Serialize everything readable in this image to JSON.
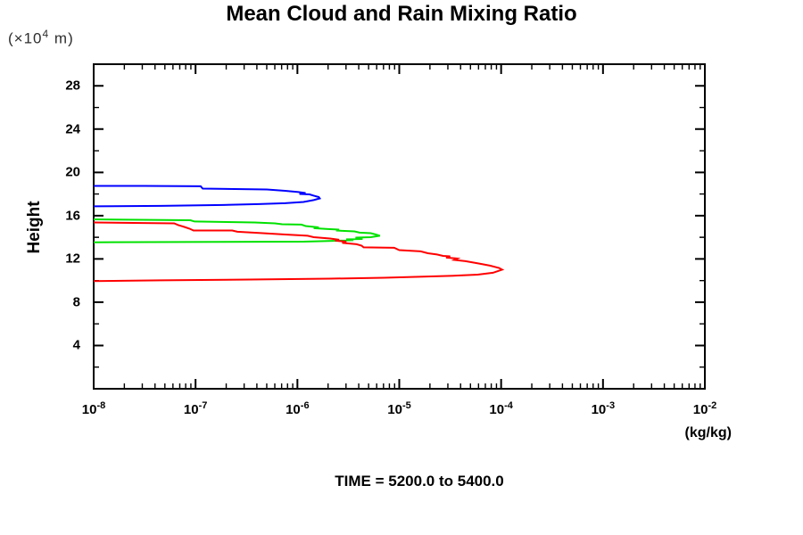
{
  "caption": "TIME = 5200.0 to 5400.0",
  "chart_data": {
    "type": "line",
    "title": "Mean Cloud and Rain Mixing Ratio",
    "legend": "none",
    "grid": false,
    "frame_color": "#000000",
    "background_color": "#ffffff",
    "x_axis": {
      "scale": "log",
      "unit_label": "(kg/kg)",
      "tick_base": "10",
      "min_exponent": -8,
      "max_exponent": -2,
      "major_tick_exponents": [
        -8,
        -7,
        -6,
        -5,
        -4,
        -3,
        -2
      ],
      "minor_tick_mantissas": [
        2,
        3,
        4,
        5,
        6,
        7,
        8,
        9
      ]
    },
    "y_axis": {
      "label": "Height",
      "unit_prefix": "(×10",
      "unit_exponent": "4",
      "unit_suffix": " m)",
      "min": 0,
      "max": 30,
      "major_ticks": [
        4,
        8,
        12,
        16,
        20,
        24,
        28
      ],
      "minor_tick_step": 2
    },
    "series": [
      {
        "name": "cloud-mixing-ratio-blue",
        "color": "#0000ff",
        "points": [
          [
            -8.0,
            18.75
          ],
          [
            -7.5,
            18.75
          ],
          [
            -6.95,
            18.72
          ],
          [
            -6.93,
            18.5
          ],
          [
            -6.3,
            18.42
          ],
          [
            -6.12,
            18.3
          ],
          [
            -5.99,
            18.18
          ],
          [
            -5.92,
            18.09
          ],
          [
            -5.98,
            18.01
          ],
          [
            -5.88,
            17.97
          ],
          [
            -5.84,
            17.85
          ],
          [
            -5.79,
            17.72
          ],
          [
            -5.78,
            17.6
          ],
          [
            -5.84,
            17.44
          ],
          [
            -5.94,
            17.27
          ],
          [
            -6.12,
            17.15
          ],
          [
            -6.38,
            17.07
          ],
          [
            -6.73,
            16.99
          ],
          [
            -7.34,
            16.9
          ],
          [
            -8.0,
            16.86
          ]
        ]
      },
      {
        "name": "cloud-mixing-ratio-green",
        "color": "#00e100",
        "points": [
          [
            -8.0,
            15.66
          ],
          [
            -7.05,
            15.58
          ],
          [
            -7.01,
            15.46
          ],
          [
            -6.42,
            15.37
          ],
          [
            -6.22,
            15.29
          ],
          [
            -6.15,
            15.21
          ],
          [
            -5.96,
            15.17
          ],
          [
            -5.92,
            15.04
          ],
          [
            -5.79,
            14.92
          ],
          [
            -5.84,
            14.84
          ],
          [
            -5.7,
            14.76
          ],
          [
            -5.59,
            14.71
          ],
          [
            -5.62,
            14.63
          ],
          [
            -5.44,
            14.55
          ],
          [
            -5.39,
            14.43
          ],
          [
            -5.28,
            14.38
          ],
          [
            -5.23,
            14.26
          ],
          [
            -5.19,
            14.14
          ],
          [
            -5.28,
            14.01
          ],
          [
            -5.43,
            13.97
          ],
          [
            -5.36,
            13.85
          ],
          [
            -5.52,
            13.81
          ],
          [
            -5.45,
            13.73
          ],
          [
            -5.77,
            13.64
          ],
          [
            -5.94,
            13.6
          ],
          [
            -8.0,
            13.54
          ]
        ]
      },
      {
        "name": "rain-mixing-ratio-red",
        "color": "#ff0000",
        "points": [
          [
            -8.0,
            15.37
          ],
          [
            -7.21,
            15.29
          ],
          [
            -7.17,
            15.13
          ],
          [
            -7.11,
            14.96
          ],
          [
            -7.06,
            14.8
          ],
          [
            -7.02,
            14.63
          ],
          [
            -6.64,
            14.63
          ],
          [
            -6.59,
            14.51
          ],
          [
            -6.34,
            14.38
          ],
          [
            -6.12,
            14.26
          ],
          [
            -5.9,
            14.14
          ],
          [
            -5.84,
            14.01
          ],
          [
            -5.68,
            13.89
          ],
          [
            -5.59,
            13.77
          ],
          [
            -5.63,
            13.69
          ],
          [
            -5.52,
            13.6
          ],
          [
            -5.56,
            13.48
          ],
          [
            -5.42,
            13.36
          ],
          [
            -5.37,
            13.23
          ],
          [
            -5.35,
            13.07
          ],
          [
            -5.05,
            13.03
          ],
          [
            -5.0,
            12.82
          ],
          [
            -4.79,
            12.7
          ],
          [
            -4.72,
            12.53
          ],
          [
            -4.63,
            12.41
          ],
          [
            -4.57,
            12.28
          ],
          [
            -4.5,
            12.24
          ],
          [
            -4.54,
            12.12
          ],
          [
            -4.43,
            12.04
          ],
          [
            -4.46,
            11.91
          ],
          [
            -4.35,
            11.79
          ],
          [
            -4.22,
            11.58
          ],
          [
            -4.11,
            11.38
          ],
          [
            -4.02,
            11.17
          ],
          [
            -3.99,
            11.01
          ],
          [
            -4.08,
            10.72
          ],
          [
            -4.23,
            10.55
          ],
          [
            -4.5,
            10.43
          ],
          [
            -4.8,
            10.35
          ],
          [
            -5.15,
            10.26
          ],
          [
            -5.68,
            10.18
          ],
          [
            -6.47,
            10.1
          ],
          [
            -7.34,
            10.02
          ],
          [
            -8.0,
            9.95
          ]
        ]
      }
    ],
    "caption": "TIME = 5200.0 to 5400.0"
  }
}
